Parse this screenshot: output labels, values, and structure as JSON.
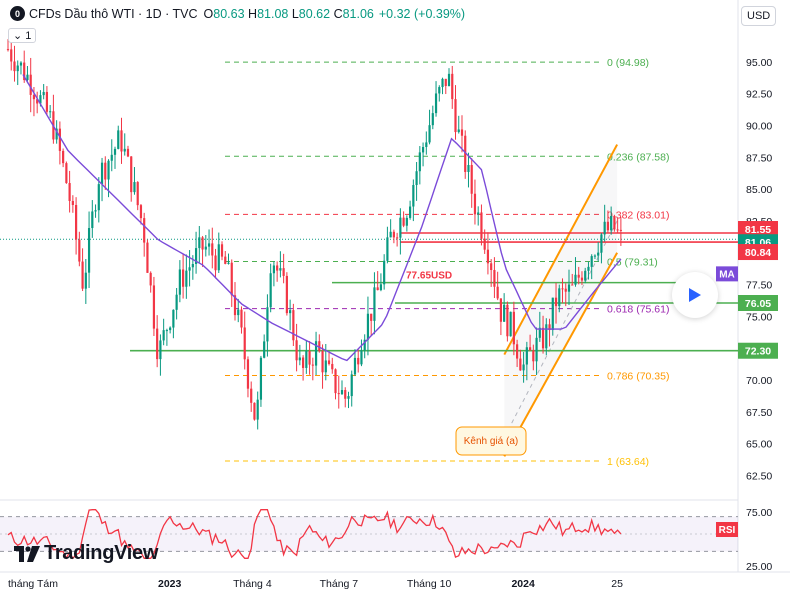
{
  "header": {
    "logo_glyph": "0",
    "title": "CFDs Dầu thô WTI · 1D · TVC",
    "ohlc": [
      {
        "k": "O",
        "v": "80.63"
      },
      {
        "k": "H",
        "v": "81.08"
      },
      {
        "k": "L",
        "v": "80.62"
      },
      {
        "k": "C",
        "v": "81.06"
      }
    ],
    "change": "+0.32 (+0.39%)",
    "indicator_count": "1",
    "currency": "USD"
  },
  "brand": "TradingView",
  "colors": {
    "up": "#089981",
    "down": "#f23645",
    "ma": "#7b4bd9",
    "fib": "#4caf50",
    "channel": "#ff9800",
    "rsi": "#f23645",
    "support": "#4caf50"
  },
  "chart_data": {
    "type": "candlestick",
    "price_axis": [
      95.0,
      92.5,
      90.0,
      87.5,
      85.0,
      82.5,
      80.0,
      77.5,
      75.0,
      72.5,
      70.0,
      67.5,
      65.0,
      62.5
    ],
    "ylim": [
      61.2,
      97.5
    ],
    "price_labels": [
      "95.00",
      "92.50",
      "90.00",
      "87.50",
      "85.00",
      "82.50",
      "80.00",
      "77.50",
      "75.00",
      "72.50",
      "70.00",
      "67.50",
      "65.00",
      "62.50"
    ],
    "time_axis": [
      {
        "label": "tháng Tám",
        "t": 0.0
      },
      {
        "label": "2023",
        "t": 0.215
      },
      {
        "label": "Tháng 4",
        "t": 0.325
      },
      {
        "label": "Tháng 7",
        "t": 0.44
      },
      {
        "label": "Tháng 10",
        "t": 0.56
      },
      {
        "label": "2024",
        "t": 0.685
      },
      {
        "label": "25",
        "t": 0.81
      }
    ],
    "price_path": [
      [
        0.0,
        96.0
      ],
      [
        0.03,
        93.5
      ],
      [
        0.06,
        90.0
      ],
      [
        0.08,
        85.0
      ],
      [
        0.1,
        77.5
      ],
      [
        0.12,
        86.0
      ],
      [
        0.15,
        89.0
      ],
      [
        0.18,
        82.0
      ],
      [
        0.2,
        72.0
      ],
      [
        0.23,
        78.0
      ],
      [
        0.26,
        80.5
      ],
      [
        0.29,
        79.0
      ],
      [
        0.31,
        73.5
      ],
      [
        0.33,
        66.5
      ],
      [
        0.35,
        80.0
      ],
      [
        0.37,
        76.5
      ],
      [
        0.39,
        70.5
      ],
      [
        0.41,
        72.5
      ],
      [
        0.43,
        70.0
      ],
      [
        0.45,
        68.5
      ],
      [
        0.47,
        73.5
      ],
      [
        0.49,
        76.5
      ],
      [
        0.51,
        81.5
      ],
      [
        0.53,
        83.5
      ],
      [
        0.55,
        88.0
      ],
      [
        0.57,
        92.0
      ],
      [
        0.585,
        94.0
      ],
      [
        0.6,
        89.0
      ],
      [
        0.62,
        84.0
      ],
      [
        0.64,
        80.0
      ],
      [
        0.655,
        75.5
      ],
      [
        0.67,
        74.0
      ],
      [
        0.685,
        71.0
      ],
      [
        0.7,
        72.5
      ],
      [
        0.715,
        73.5
      ],
      [
        0.73,
        76.5
      ],
      [
        0.75,
        77.0
      ],
      [
        0.77,
        79.5
      ],
      [
        0.79,
        81.5
      ],
      [
        0.805,
        82.0
      ],
      [
        0.815,
        81.06
      ]
    ],
    "ma_path": [
      [
        0.02,
        94.0
      ],
      [
        0.08,
        88.0
      ],
      [
        0.14,
        84.5
      ],
      [
        0.2,
        81.0
      ],
      [
        0.26,
        79.0
      ],
      [
        0.31,
        76.0
      ],
      [
        0.35,
        74.5
      ],
      [
        0.4,
        73.0
      ],
      [
        0.45,
        71.5
      ],
      [
        0.5,
        74.5
      ],
      [
        0.55,
        82.0
      ],
      [
        0.59,
        89.0
      ],
      [
        0.63,
        86.5
      ],
      [
        0.66,
        79.0
      ],
      [
        0.7,
        74.0
      ],
      [
        0.74,
        74.0
      ],
      [
        0.78,
        77.0
      ],
      [
        0.815,
        79.5
      ]
    ],
    "fibonacci": [
      {
        "level": "0",
        "price": 94.98,
        "label": "0 (94.98)",
        "color": "#4caf50"
      },
      {
        "level": "0.236",
        "price": 87.58,
        "label": "0.236 (87.58)",
        "color": "#4caf50"
      },
      {
        "level": "0.382",
        "price": 83.01,
        "label": "0.382 (83.01)",
        "color": "#f23645"
      },
      {
        "level": "0.5",
        "price": 79.31,
        "label": "0.5 (79.31)",
        "color": "#4caf50"
      },
      {
        "level": "0.618",
        "price": 75.61,
        "label": "0.618 (75.61)",
        "color": "#9c27b0"
      },
      {
        "level": "0.786",
        "price": 70.35,
        "label": "0.786 (70.35)",
        "color": "#ff9800"
      },
      {
        "level": "1",
        "price": 63.64,
        "label": "1 (63.64)",
        "color": "#ffc107"
      }
    ],
    "horizontal_lines": [
      {
        "price": 81.55,
        "label": "81.55",
        "color": "#f23645"
      },
      {
        "price": 80.84,
        "label": "80.84",
        "color": "#f23645"
      },
      {
        "price": 76.05,
        "label": "76.05",
        "color": "#4caf50"
      },
      {
        "price": 72.3,
        "label": "72.30",
        "color": "#4caf50"
      },
      {
        "price": 77.65,
        "label": "77.65USD",
        "color": "#4caf50"
      }
    ],
    "last_price": {
      "price": 81.06,
      "label": "81.06"
    },
    "channel": {
      "label": "Kênh giá (a)",
      "upper": [
        [
          0.66,
          72.0
        ],
        [
          0.81,
          88.5
        ]
      ],
      "lower": [
        [
          0.66,
          64.0
        ],
        [
          0.81,
          80.0
        ]
      ],
      "mid_start": [
        0.66,
        65.5
      ]
    },
    "ma_tag": "MA",
    "rsi": {
      "label": "RSI",
      "axis": [
        "75.00",
        "25.00"
      ],
      "levels": [
        70,
        30
      ]
    }
  }
}
